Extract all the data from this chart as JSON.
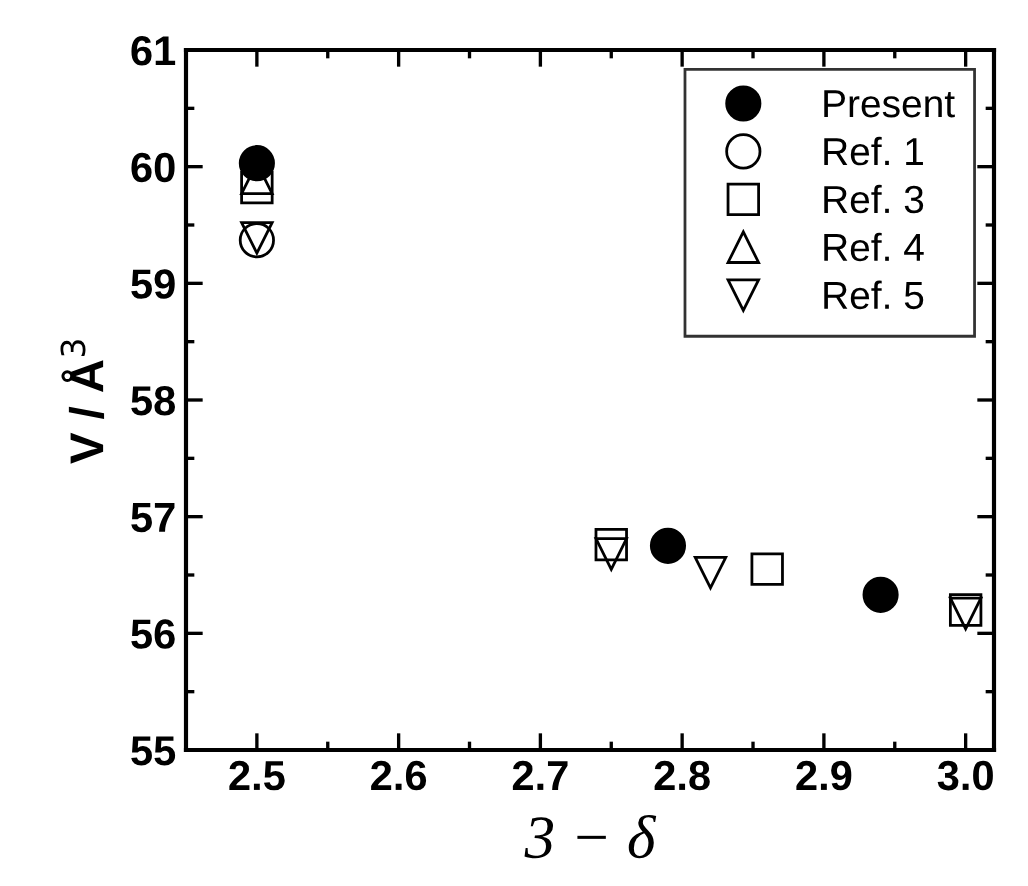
{
  "chart_data": {
    "type": "scatter",
    "xlabel": "3 − δ",
    "ylabel": "V / Å$^{3}$",
    "xlim": [
      2.45,
      3.02
    ],
    "ylim": [
      55,
      61
    ],
    "xticks": [
      {
        "value": 2.5,
        "label": "2.5"
      },
      {
        "value": 2.6,
        "label": "2.6"
      },
      {
        "value": 2.7,
        "label": "2.7"
      },
      {
        "value": 2.8,
        "label": "2.8"
      },
      {
        "value": 2.9,
        "label": "2.9"
      },
      {
        "value": 3.0,
        "label": "3.0"
      }
    ],
    "yticks": [
      55,
      56,
      57,
      58,
      59,
      60,
      61
    ],
    "legend": "top right",
    "grid": false,
    "series": [
      {
        "name": "Present",
        "color": "#000000",
        "marker": "circle",
        "x": [
          2.5,
          2.79,
          2.94
        ],
        "values": [
          60.03,
          56.75,
          56.33
        ]
      },
      {
        "name": "Ref. 1",
        "color": "#000000",
        "marker": "circle",
        "x": [
          2.5
        ],
        "values": [
          59.37
        ]
      },
      {
        "name": "Ref. 3",
        "color": "#000000",
        "marker": "square",
        "x": [
          2.5,
          2.75,
          2.86,
          3.0
        ],
        "values": [
          59.82,
          56.76,
          56.55,
          56.2
        ]
      },
      {
        "name": "Ref. 4",
        "color": "#000000",
        "marker": "triangle",
        "x": [
          2.5
        ],
        "values": [
          59.9
        ]
      },
      {
        "name": "Ref. 5",
        "color": "#000000",
        "marker": "triangle_down",
        "x": [
          2.5,
          2.75,
          2.82,
          3.0
        ],
        "values": [
          59.39,
          56.68,
          56.52,
          56.17
        ]
      }
    ]
  }
}
